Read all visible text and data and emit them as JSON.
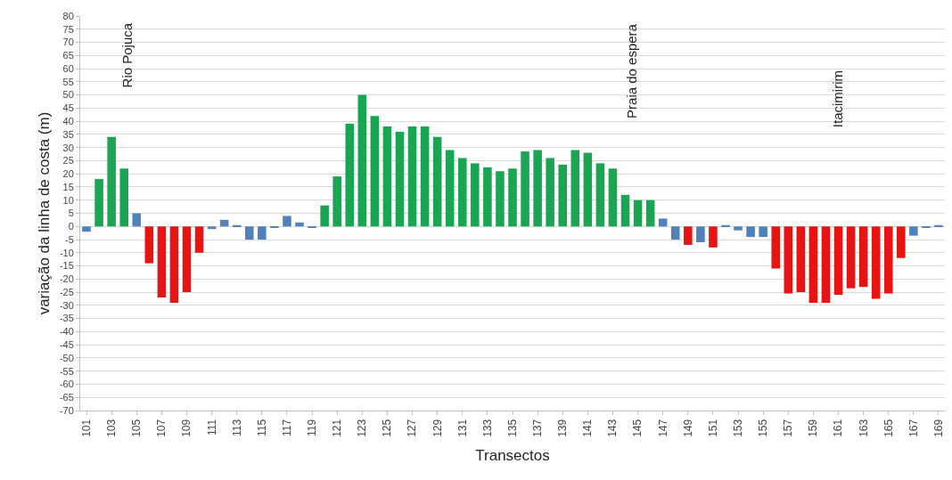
{
  "chart_data": {
    "type": "bar",
    "xlabel": "Transectos",
    "ylabel": "variação da linha de costa (m)",
    "categories": [
      "101",
      null,
      "103",
      null,
      "105",
      null,
      "107",
      null,
      "109",
      null,
      "111",
      null,
      "113",
      null,
      "115",
      null,
      "117",
      null,
      "119",
      null,
      "121",
      null,
      "123",
      null,
      "125",
      null,
      "127",
      null,
      "129",
      null,
      "131",
      null,
      "133",
      null,
      "135",
      null,
      "137",
      null,
      "139",
      null,
      "141",
      null,
      "143",
      null,
      "145",
      null,
      "147",
      null,
      "149",
      null,
      "151",
      null,
      "153",
      null,
      "155",
      null,
      "157",
      null,
      "159",
      null,
      "161",
      null,
      "163",
      null,
      "165",
      null,
      "167",
      null,
      "169"
    ],
    "values": [
      -2,
      18,
      34,
      22,
      5,
      -14,
      -27,
      -29,
      -25,
      -10,
      -1,
      2.5,
      0.5,
      -5,
      -5,
      -0.5,
      4,
      1.5,
      -0.5,
      8,
      19,
      39,
      50,
      42,
      38,
      36,
      38,
      38,
      34,
      29,
      26,
      24,
      22.5,
      21,
      22,
      28.5,
      29,
      26,
      23.5,
      29,
      28,
      24,
      22,
      12,
      10,
      10,
      3,
      -5,
      -7,
      -6,
      -8,
      0.5,
      -1.5,
      -4,
      -4,
      -16,
      -25.5,
      -25,
      -29,
      -29,
      -26,
      -23.5,
      -23,
      -27.5,
      -25.5,
      -12,
      -3.5,
      -0.5,
      0.5
    ],
    "colors": [
      "#4f81bd",
      "#1aa552",
      "#1aa552",
      "#1aa552",
      "#4f81bd",
      "#e81313",
      "#e81313",
      "#e81313",
      "#e81313",
      "#e81313",
      "#4f81bd",
      "#4f81bd",
      "#4f81bd",
      "#4f81bd",
      "#4f81bd",
      "#4f81bd",
      "#4f81bd",
      "#4f81bd",
      "#4f81bd",
      "#1aa552",
      "#1aa552",
      "#1aa552",
      "#1aa552",
      "#1aa552",
      "#1aa552",
      "#1aa552",
      "#1aa552",
      "#1aa552",
      "#1aa552",
      "#1aa552",
      "#1aa552",
      "#1aa552",
      "#1aa552",
      "#1aa552",
      "#1aa552",
      "#1aa552",
      "#1aa552",
      "#1aa552",
      "#1aa552",
      "#1aa552",
      "#1aa552",
      "#1aa552",
      "#1aa552",
      "#1aa552",
      "#1aa552",
      "#1aa552",
      "#4f81bd",
      "#4f81bd",
      "#e81313",
      "#4f81bd",
      "#e81313",
      "#4f81bd",
      "#4f81bd",
      "#4f81bd",
      "#4f81bd",
      "#e81313",
      "#e81313",
      "#e81313",
      "#e81313",
      "#e81313",
      "#e81313",
      "#e81313",
      "#e81313",
      "#e81313",
      "#e81313",
      "#e81313",
      "#4f81bd",
      "#4f81bd",
      "#4f81bd"
    ],
    "ylim": [
      -70,
      80
    ],
    "yticks": [
      -70,
      -65,
      -60,
      -55,
      -50,
      -45,
      -40,
      -35,
      -30,
      -25,
      -20,
      -15,
      -10,
      -5,
      0,
      5,
      10,
      15,
      20,
      25,
      30,
      35,
      40,
      45,
      50,
      55,
      60,
      65,
      70,
      75,
      80
    ],
    "grid": "y",
    "annotations": [
      "Rio Pojuca",
      "Praia do espera",
      "Itacimirim"
    ]
  }
}
